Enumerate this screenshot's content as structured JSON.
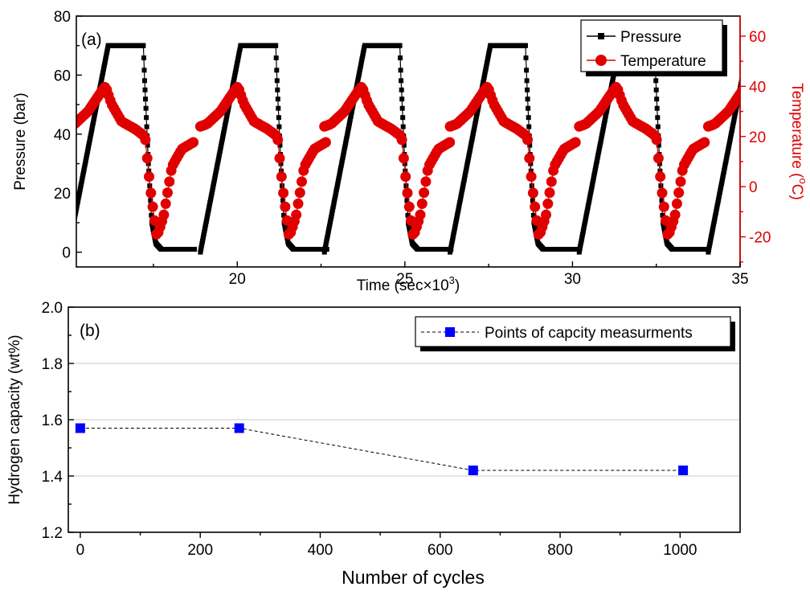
{
  "chart_data": [
    {
      "panel": "(a)",
      "type": "scatter",
      "xlabel": "Time (sec×10",
      "xlabel_sup": "3",
      "xlabel_end": ")",
      "ylabel": "Pressure (bar)",
      "y2label": "Temperature (",
      "y2label_sup": "o",
      "y2label_end": "C)",
      "xlim": [
        15.2,
        35
      ],
      "ylim": [
        -5,
        80
      ],
      "y2lim": [
        -32,
        68
      ],
      "xticks": [
        20,
        25,
        30,
        35
      ],
      "yticks": [
        0,
        20,
        40,
        60,
        80
      ],
      "y2ticks": [
        -20,
        0,
        20,
        40,
        60
      ],
      "legend_position": "top-right",
      "colors": {
        "pressure": "#000000",
        "temperature": "#e00000"
      },
      "cycle_period": 3.78,
      "cycle_starts": [
        14.95,
        18.9,
        22.6,
        26.35,
        30.2,
        34.05
      ],
      "series": [
        {
          "name": "Pressure",
          "axis": "left",
          "marker": "square",
          "line": "solid",
          "color": "#000000",
          "cycle_template": {
            "t": [
              0,
              0.05,
              1.2,
              1.3,
              2.25,
              2.28,
              2.4,
              2.5,
              2.62,
              2.78,
              3.0,
              3.78
            ],
            "v": [
              0,
              3,
              70,
              70,
              70,
              60,
              30,
              10,
              3,
              1,
              1,
              1
            ]
          }
        },
        {
          "name": "Temperature",
          "axis": "right",
          "marker": "circle",
          "line": "solid",
          "color": "#e00000",
          "cycle_template": {
            "t": [
              0,
              0.2,
              0.6,
              1.0,
              1.12,
              1.3,
              1.6,
              2.0,
              2.3,
              2.45,
              2.65,
              2.85,
              3.1,
              3.4,
              3.78
            ],
            "v": [
              24,
              25,
              30,
              38,
              40,
              33,
              26,
              23,
              20,
              0,
              -20,
              -12,
              8,
              15,
              18
            ]
          }
        }
      ]
    },
    {
      "panel": "(b)",
      "type": "line",
      "xlabel": "Number of cycles",
      "ylabel": "Hydrogen capacity (wt%)",
      "xlim": [
        -20,
        1100
      ],
      "ylim": [
        1.2,
        2.0
      ],
      "xticks": [
        0,
        200,
        400,
        600,
        800,
        1000
      ],
      "yticks": [
        1.2,
        1.4,
        1.6,
        1.8,
        2.0
      ],
      "grid": "horizontal",
      "legend_position": "top-right",
      "series": [
        {
          "name": "Points of capcity measurments",
          "marker": "square",
          "line": "dashed",
          "color": "#0000ff",
          "x": [
            0,
            265,
            655,
            1005
          ],
          "y": [
            1.57,
            1.57,
            1.42,
            1.42
          ]
        }
      ]
    }
  ]
}
